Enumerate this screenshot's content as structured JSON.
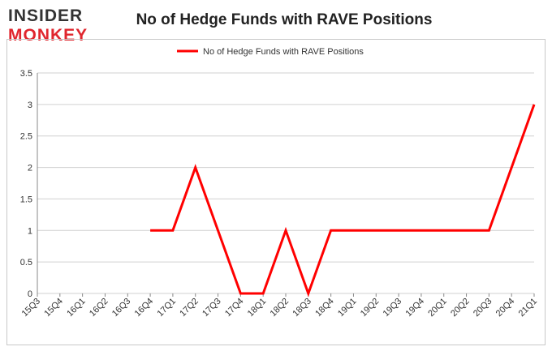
{
  "logo": {
    "top": "INSIDER",
    "bottom": "MONKEY"
  },
  "chart_data": {
    "type": "line",
    "title": "No of Hedge Funds with RAVE Positions",
    "xlabel": "",
    "ylabel": "",
    "categories": [
      "15Q3",
      "15Q4",
      "16Q1",
      "16Q2",
      "16Q3",
      "16Q4",
      "17Q1",
      "17Q2",
      "17Q3",
      "17Q4",
      "18Q1",
      "18Q2",
      "18Q3",
      "18Q4",
      "19Q1",
      "19Q2",
      "19Q3",
      "19Q4",
      "20Q1",
      "20Q2",
      "20Q3",
      "20Q4",
      "21Q1"
    ],
    "series": [
      {
        "name": "No of Hedge Funds with RAVE Positions",
        "values": [
          null,
          null,
          null,
          null,
          null,
          1,
          1,
          2,
          1,
          0,
          0,
          1,
          0,
          1,
          1,
          1,
          1,
          1,
          1,
          1,
          1,
          2,
          3
        ]
      }
    ],
    "y_ticks": [
      "0",
      "0.5",
      "1",
      "1.5",
      "2",
      "2.5",
      "3",
      "3.5"
    ],
    "ylim": [
      0,
      3.5
    ],
    "grid": "horizontal",
    "legend": "top-center",
    "colors": {
      "line": "#ff0000",
      "grid": "#d0d0d0",
      "axis": "#888888"
    }
  }
}
